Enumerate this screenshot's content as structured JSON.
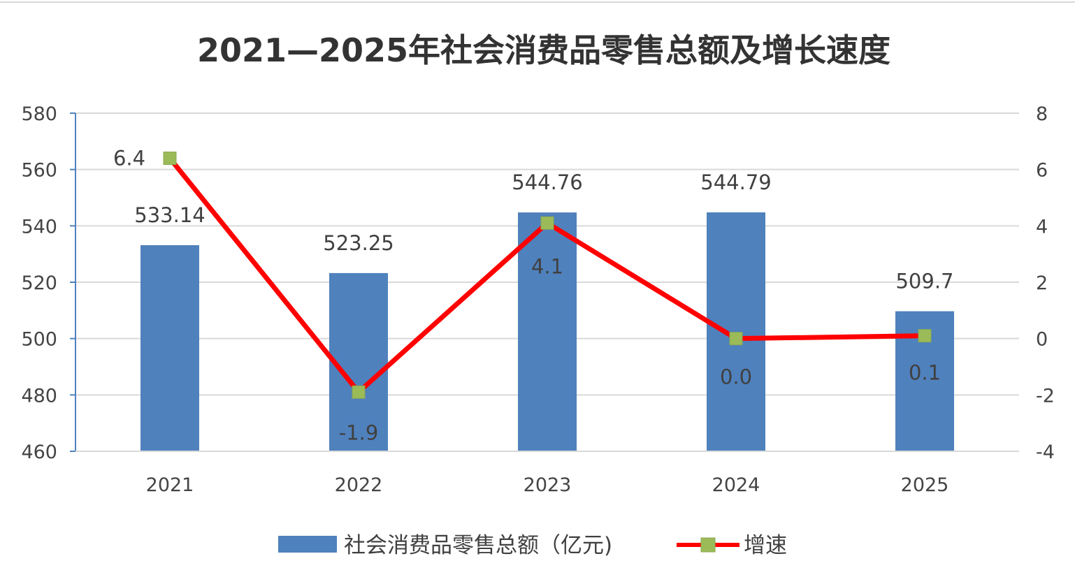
{
  "chart_data": {
    "type": "bar",
    "title": "2021—2025年社会消费品零售总额及增长速度",
    "categories": [
      "2021",
      "2022",
      "2023",
      "2024",
      "2025"
    ],
    "series": [
      {
        "name": "社会消费品零售总额（亿元)",
        "type": "bar",
        "axis": "left",
        "values": [
          533.14,
          523.25,
          544.76,
          544.79,
          509.7
        ],
        "labels": [
          "533.14",
          "523.25",
          "544.76",
          "544.79",
          "509.7"
        ]
      },
      {
        "name": "增速",
        "type": "line",
        "axis": "right",
        "values": [
          6.4,
          -1.9,
          4.1,
          0.0,
          0.1
        ],
        "labels": [
          "6.4",
          "-1.9",
          "4.1",
          "0.0",
          "0.1"
        ]
      }
    ],
    "y_left": {
      "min": 460,
      "max": 580,
      "ticks": [
        "460",
        "480",
        "500",
        "520",
        "540",
        "560",
        "580"
      ]
    },
    "y_right": {
      "min": -4,
      "max": 8,
      "ticks": [
        "-4",
        "-2",
        "0",
        "2",
        "4",
        "6",
        "8"
      ]
    },
    "grid": true,
    "legend": "bottom",
    "colors": {
      "bar": "#4f81bd",
      "line": "#ff0000",
      "marker": "#9bbb59",
      "grid": "#d9d9d9",
      "axis": "#4f81bd"
    }
  }
}
